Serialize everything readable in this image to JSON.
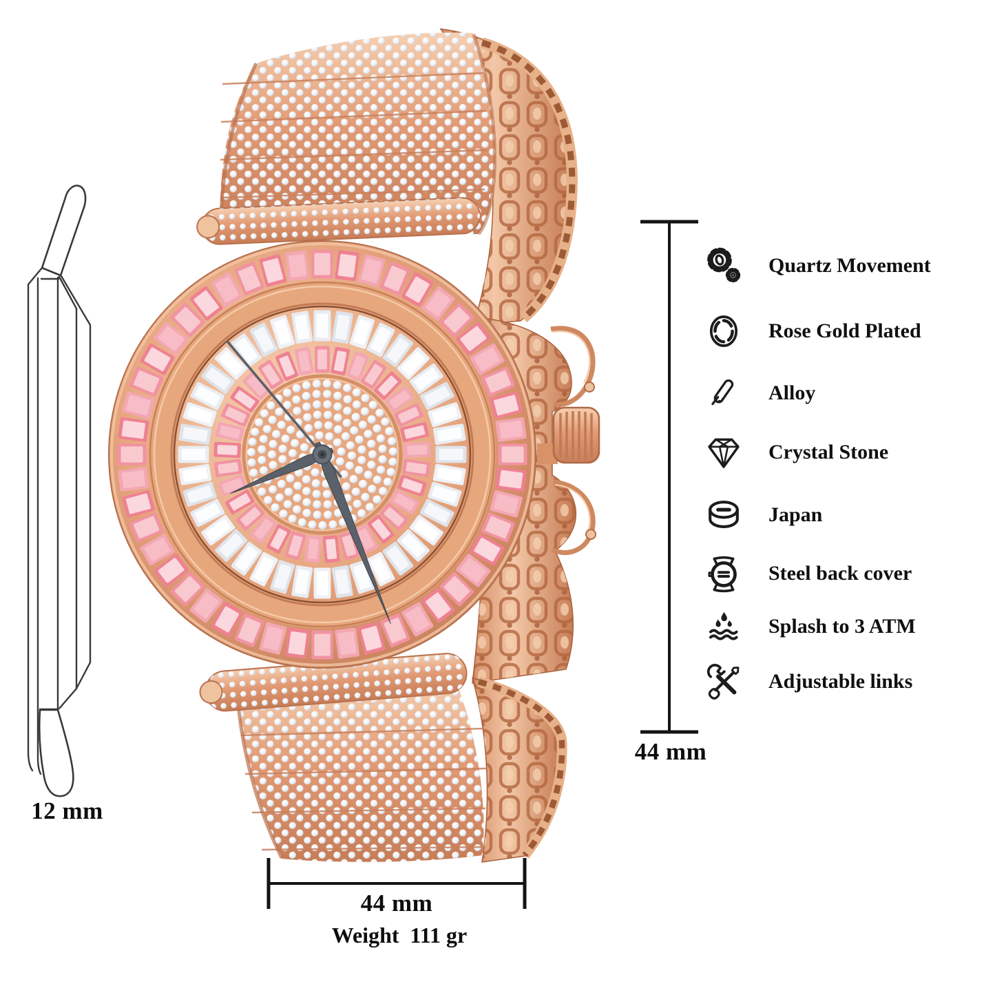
{
  "side_profile": {
    "thickness_label": "12 mm"
  },
  "dimensions": {
    "case_height_label": "44 mm",
    "case_width_label": "44 mm",
    "weight_label": "Weight  111 gr"
  },
  "features": [
    {
      "icon": "gears-icon",
      "label": "Quartz Movement"
    },
    {
      "icon": "case-bezel-icon",
      "label": "Rose Gold Plated"
    },
    {
      "icon": "metal-bar-icon",
      "label": "Alloy"
    },
    {
      "icon": "diamond-icon",
      "label": "Crystal Stone"
    },
    {
      "icon": "movement-disc-icon",
      "label": "Japan"
    },
    {
      "icon": "watch-caseback-icon",
      "label": "Steel back cover"
    },
    {
      "icon": "water-drops-icon",
      "label": "Splash to 3 ATM"
    },
    {
      "icon": "wrench-screwdriver-icon",
      "label": "Adjustable links"
    }
  ],
  "watch": {
    "palette": {
      "rose_gold": "#e29b75",
      "rose_gold_light": "#f6d0b2",
      "rose_gold_deep": "#c27a55",
      "rose_gold_shadow": "#a95f3b",
      "pink_stones": [
        "#f193a1",
        "#ee8192",
        "#f3a7b2"
      ],
      "pink_cores": [
        "#f9c9d0",
        "#fbd8dd",
        "#f7bcc5"
      ],
      "white_stones": [
        "#e9ecf2",
        "#dfe3ea",
        "#eff1f6"
      ],
      "white_cores": [
        "#fcfdfe",
        "#f5f7fa",
        "#ffffff"
      ],
      "dial_base": "#e8a67e",
      "hands": "#5b616b",
      "hub": "#474c54"
    },
    "dimension_line_color": "#141414"
  }
}
